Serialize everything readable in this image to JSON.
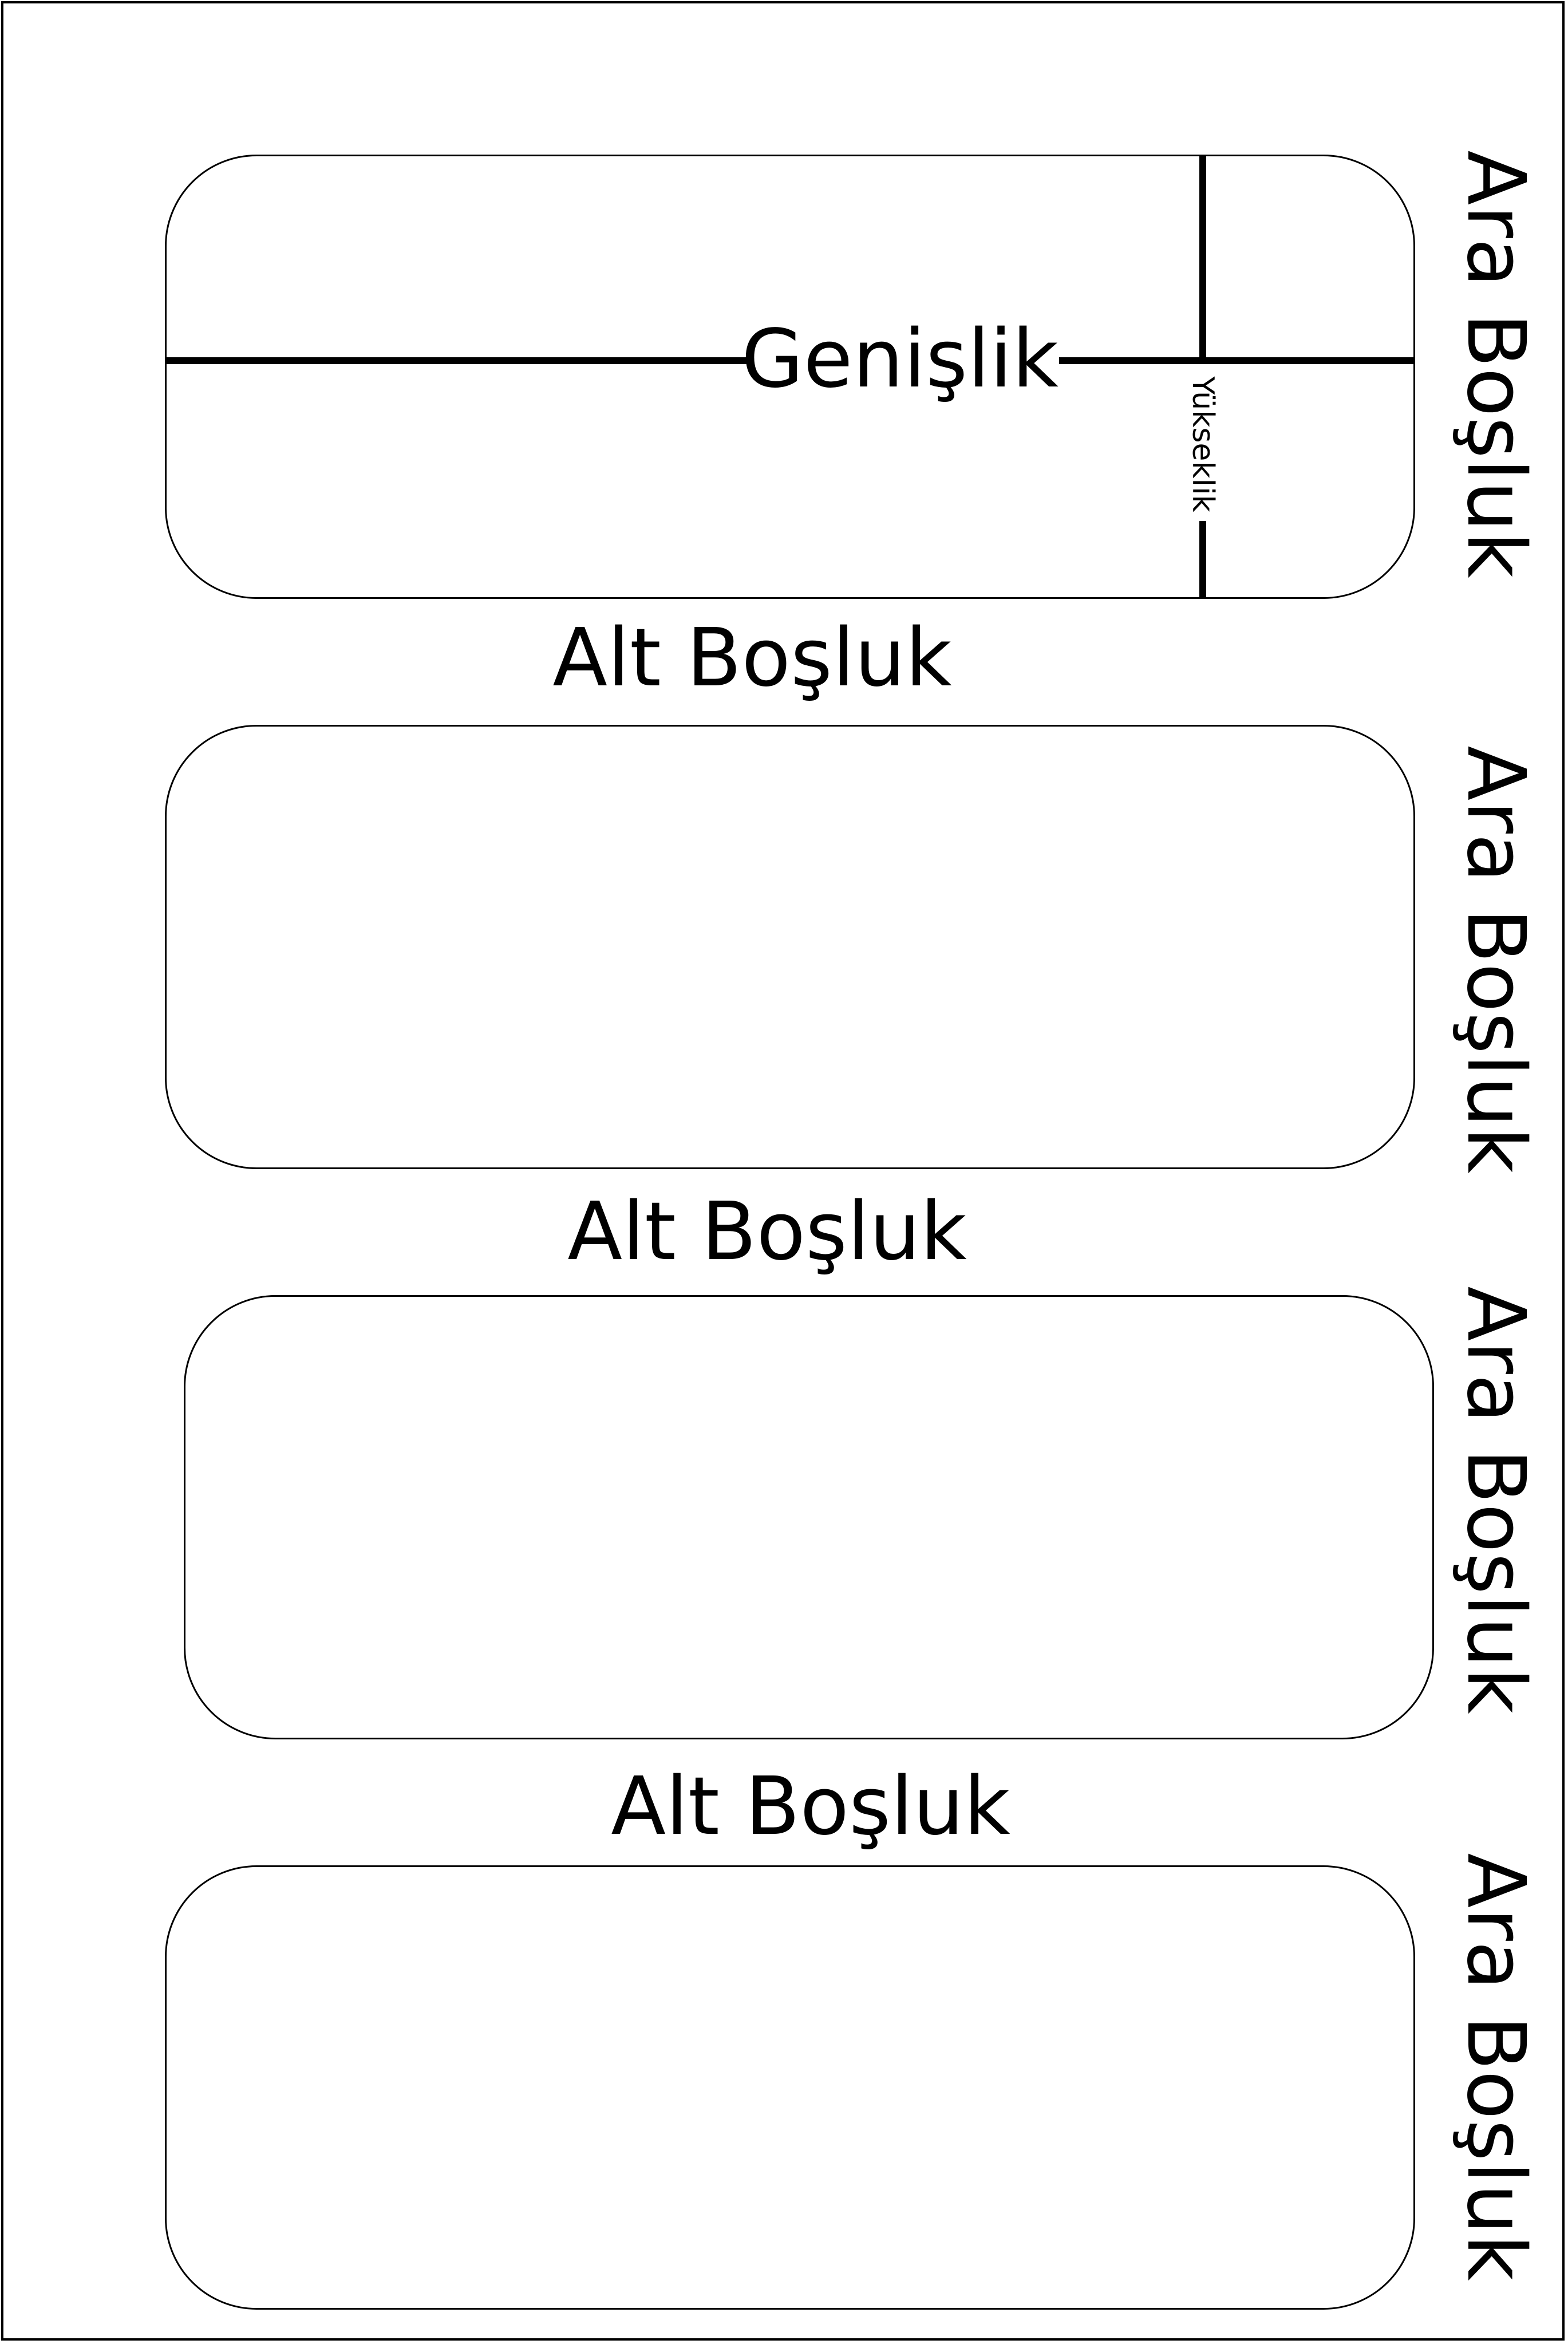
{
  "labels": [
    {
      "id": "label-1"
    },
    {
      "id": "label-2"
    },
    {
      "id": "label-3"
    },
    {
      "id": "label-4"
    }
  ],
  "dimension": {
    "width_label": "Genişlik",
    "height_label": "Yükseklik"
  },
  "gaps": {
    "bottom": [
      "Alt Boşluk",
      "Alt Boşluk",
      "Alt Boşluk"
    ],
    "side": [
      "Ara Boşluk",
      "Ara Boşluk",
      "Ara Boşluk",
      "Ara Boşluk"
    ]
  },
  "colors": {
    "stroke": "#000000",
    "background": "#ffffff"
  }
}
